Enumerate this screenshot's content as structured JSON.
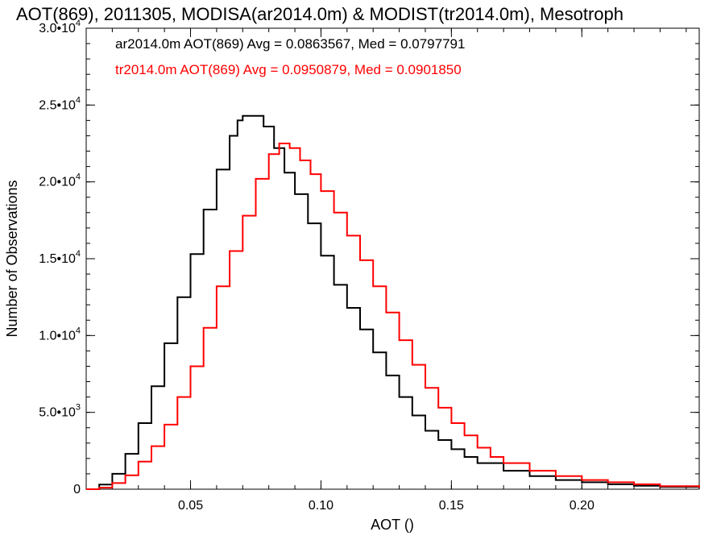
{
  "chart_data": {
    "type": "line",
    "title": "AOT(869), 2011305, MODISA(ar2014.0m) & MODIST(tr2014.0m), Mesotroph",
    "xlabel": "AOT ()",
    "ylabel": "Number of Observations",
    "xlim": [
      0.01,
      0.245
    ],
    "ylim": [
      0,
      30000
    ],
    "x_ticks": [
      {
        "value": 0.05,
        "label": "0.05"
      },
      {
        "value": 0.1,
        "label": "0.10"
      },
      {
        "value": 0.15,
        "label": "0.15"
      },
      {
        "value": 0.2,
        "label": "0.20"
      }
    ],
    "y_ticks": [
      {
        "value": 0,
        "label": "0"
      },
      {
        "value": 5000,
        "mant": "5.0",
        "exp": "3"
      },
      {
        "value": 10000,
        "mant": "1.0",
        "exp": "4"
      },
      {
        "value": 15000,
        "mant": "1.5",
        "exp": "4"
      },
      {
        "value": 20000,
        "mant": "2.0",
        "exp": "4"
      },
      {
        "value": 25000,
        "mant": "2.5",
        "exp": "4"
      },
      {
        "value": 30000,
        "mant": "3.0",
        "exp": "4"
      }
    ],
    "x_minor_step": 0.01,
    "y_minor_step": 1000,
    "grid": false,
    "legend_position": "top-left",
    "series": [
      {
        "name": "ar2014.0m AOT(869) Avg = 0.0863567, Med = 0.0797791",
        "color": "#000000",
        "points": [
          [
            0.01,
            0
          ],
          [
            0.015,
            300
          ],
          [
            0.02,
            1000
          ],
          [
            0.025,
            2300
          ],
          [
            0.03,
            4300
          ],
          [
            0.035,
            6700
          ],
          [
            0.04,
            9500
          ],
          [
            0.045,
            12500
          ],
          [
            0.05,
            15300
          ],
          [
            0.055,
            18200
          ],
          [
            0.06,
            20800
          ],
          [
            0.065,
            23000
          ],
          [
            0.068,
            24000
          ],
          [
            0.07,
            24300
          ],
          [
            0.074,
            24300
          ],
          [
            0.078,
            23600
          ],
          [
            0.082,
            22200
          ],
          [
            0.086,
            20600
          ],
          [
            0.09,
            19200
          ],
          [
            0.095,
            17300
          ],
          [
            0.1,
            15200
          ],
          [
            0.105,
            13300
          ],
          [
            0.11,
            11800
          ],
          [
            0.115,
            10400
          ],
          [
            0.12,
            8900
          ],
          [
            0.125,
            7400
          ],
          [
            0.13,
            6000
          ],
          [
            0.135,
            4800
          ],
          [
            0.14,
            3800
          ],
          [
            0.145,
            3200
          ],
          [
            0.15,
            2600
          ],
          [
            0.155,
            2100
          ],
          [
            0.16,
            1700
          ],
          [
            0.17,
            1200
          ],
          [
            0.18,
            850
          ],
          [
            0.19,
            600
          ],
          [
            0.2,
            450
          ],
          [
            0.21,
            320
          ],
          [
            0.22,
            220
          ],
          [
            0.23,
            150
          ],
          [
            0.245,
            80
          ]
        ]
      },
      {
        "name": "tr2014.0m AOT(869) Avg = 0.0950879, Med = 0.0901850",
        "color": "#ff0000",
        "points": [
          [
            0.01,
            0
          ],
          [
            0.015,
            100
          ],
          [
            0.02,
            400
          ],
          [
            0.025,
            900
          ],
          [
            0.03,
            1800
          ],
          [
            0.035,
            2800
          ],
          [
            0.04,
            4200
          ],
          [
            0.045,
            6000
          ],
          [
            0.05,
            8000
          ],
          [
            0.055,
            10500
          ],
          [
            0.06,
            13200
          ],
          [
            0.065,
            15500
          ],
          [
            0.07,
            17800
          ],
          [
            0.075,
            20200
          ],
          [
            0.08,
            21800
          ],
          [
            0.084,
            22500
          ],
          [
            0.088,
            22200
          ],
          [
            0.092,
            21400
          ],
          [
            0.096,
            20500
          ],
          [
            0.1,
            19400
          ],
          [
            0.105,
            18000
          ],
          [
            0.11,
            16500
          ],
          [
            0.115,
            14900
          ],
          [
            0.12,
            13200
          ],
          [
            0.125,
            11500
          ],
          [
            0.13,
            9700
          ],
          [
            0.135,
            8100
          ],
          [
            0.14,
            6600
          ],
          [
            0.145,
            5300
          ],
          [
            0.15,
            4300
          ],
          [
            0.155,
            3500
          ],
          [
            0.16,
            2700
          ],
          [
            0.165,
            2100
          ],
          [
            0.17,
            1700
          ],
          [
            0.18,
            1200
          ],
          [
            0.19,
            850
          ],
          [
            0.2,
            600
          ],
          [
            0.21,
            450
          ],
          [
            0.22,
            320
          ],
          [
            0.23,
            200
          ],
          [
            0.245,
            100
          ]
        ]
      }
    ]
  }
}
